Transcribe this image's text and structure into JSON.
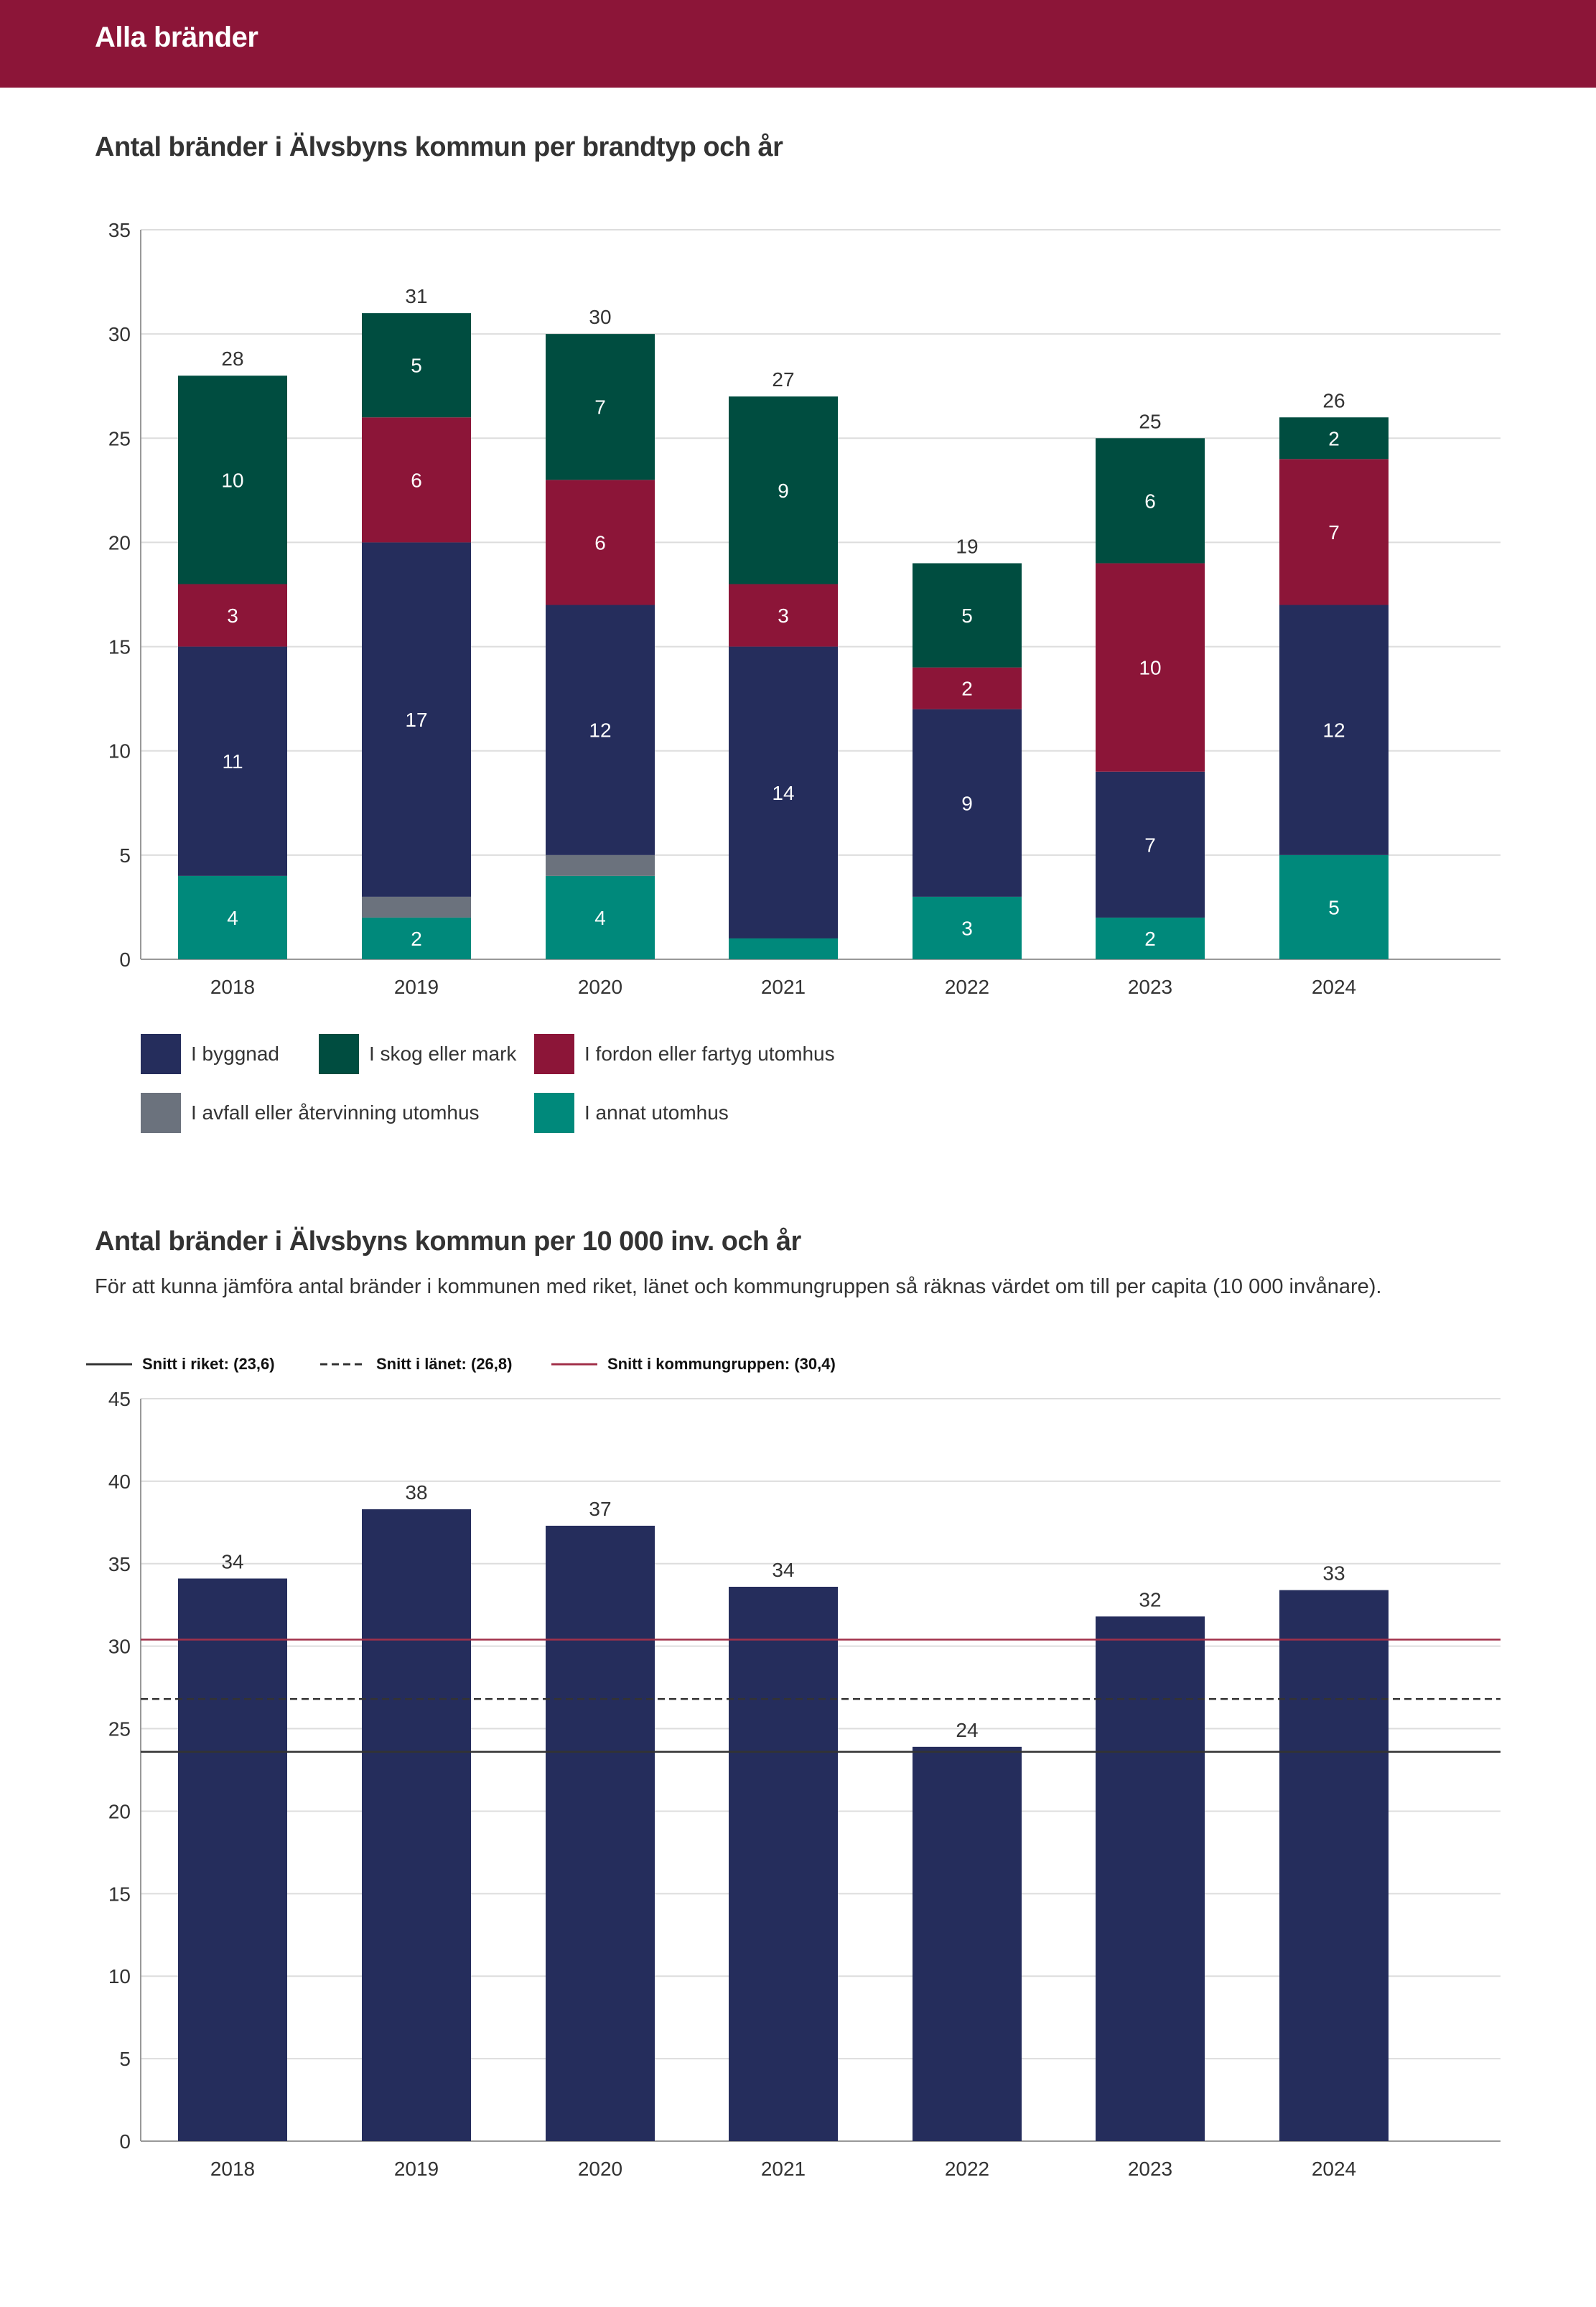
{
  "header": {
    "title": "Alla bränder"
  },
  "section1": {
    "title": "Antal bränder i Älvsbyns kommun per brandtyp och år"
  },
  "section2": {
    "title": "Antal bränder i Älvsbyns kommun per 10 000 inv. och år",
    "description": "För att kunna jämföra antal bränder i kommunen med riket, länet och kommungruppen så räknas värdet om till per capita (10 000 invånare)."
  },
  "colors": {
    "header": "#8c1538",
    "byggnad": "#252d5c",
    "skog": "#004d40",
    "fordon": "#8c1538",
    "avfall": "#6b727d",
    "annat": "#00897b",
    "grid": "#dddddd",
    "axis": "#999999",
    "riket": "#333333",
    "lanet": "#333333",
    "kommungrupp": "#a2304a"
  },
  "chart_data": [
    {
      "type": "bar",
      "stacked": true,
      "title": "Antal bränder i Älvsbyns kommun per brandtyp och år",
      "categories": [
        "2018",
        "2019",
        "2020",
        "2021",
        "2022",
        "2023",
        "2024"
      ],
      "series": [
        {
          "name": "I annat utomhus",
          "key": "annat",
          "values": [
            4,
            2,
            4,
            1,
            3,
            2,
            5
          ],
          "labels": [
            "4",
            "2",
            "4",
            "",
            "3",
            "2",
            "5"
          ]
        },
        {
          "name": "I avfall eller återvinning utomhus",
          "key": "avfall",
          "values": [
            0,
            1,
            1,
            0,
            0,
            0,
            0
          ],
          "labels": [
            "",
            "",
            "",
            "",
            "",
            "",
            ""
          ]
        },
        {
          "name": "I byggnad",
          "key": "byggnad",
          "values": [
            11,
            17,
            12,
            14,
            9,
            7,
            12
          ],
          "labels": [
            "11",
            "17",
            "12",
            "14",
            "9",
            "7",
            "12"
          ]
        },
        {
          "name": "I fordon eller fartyg utomhus",
          "key": "fordon",
          "values": [
            3,
            6,
            6,
            3,
            2,
            10,
            7
          ],
          "labels": [
            "3",
            "6",
            "6",
            "3",
            "2",
            "10",
            "7"
          ]
        },
        {
          "name": "I skog eller mark",
          "key": "skog",
          "values": [
            10,
            5,
            7,
            9,
            5,
            6,
            2
          ],
          "labels": [
            "10",
            "5",
            "7",
            "9",
            "5",
            "6",
            "2"
          ]
        }
      ],
      "totals": [
        "28",
        "31",
        "30",
        "27",
        "19",
        "25",
        "26"
      ],
      "ylim": [
        0,
        35
      ],
      "yticks": [
        "0",
        "5",
        "10",
        "15",
        "20",
        "25",
        "30",
        "35"
      ],
      "legend": [
        {
          "label": "I byggnad",
          "key": "byggnad"
        },
        {
          "label": "I skog eller mark",
          "key": "skog"
        },
        {
          "label": "I fordon eller fartyg utomhus",
          "key": "fordon"
        },
        {
          "label": "I avfall eller återvinning utomhus",
          "key": "avfall"
        },
        {
          "label": "I annat utomhus",
          "key": "annat"
        }
      ]
    },
    {
      "type": "bar",
      "title": "Antal bränder i Älvsbyns kommun per 10 000 inv. och år",
      "categories": [
        "2018",
        "2019",
        "2020",
        "2021",
        "2022",
        "2023",
        "2024"
      ],
      "values": [
        34.1,
        38.3,
        37.3,
        33.6,
        23.9,
        31.8,
        33.4
      ],
      "labels": [
        "34",
        "38",
        "37",
        "34",
        "24",
        "32",
        "33"
      ],
      "ylim": [
        0,
        45
      ],
      "yticks": [
        "0",
        "5",
        "10",
        "15",
        "20",
        "25",
        "30",
        "35",
        "40",
        "45"
      ],
      "reference_lines": [
        {
          "label": "Snitt i riket: (23,6)",
          "value": 23.6,
          "style": "solid",
          "color_key": "riket"
        },
        {
          "label": "Snitt i länet: (26,8)",
          "value": 26.8,
          "style": "dashed",
          "color_key": "lanet"
        },
        {
          "label": "Snitt i kommungruppen: (30,4)",
          "value": 30.4,
          "style": "solid",
          "color_key": "kommungrupp"
        }
      ]
    }
  ]
}
